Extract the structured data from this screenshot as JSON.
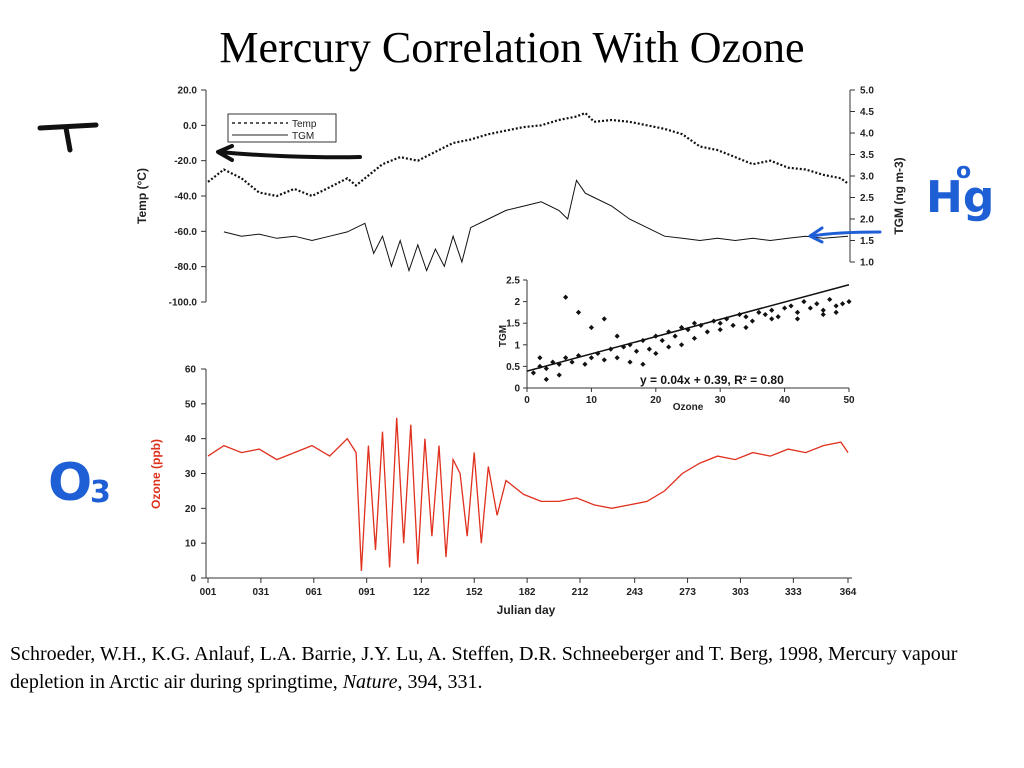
{
  "slide": {
    "title": "Mercury Correlation With Ozone",
    "citation": {
      "before": "Schroeder, W.H., K.G. Anlauf, L.A. Barrie, J.Y. Lu, A. Steffen, D.R. Schneeberger and T. Berg, 1998, Mercury vapour depletion in Arctic air during springtime, ",
      "journal": "Nature",
      "after": ", 394, 331."
    }
  },
  "annotations": {
    "temp_symbol": "T",
    "ozone_symbol": "O",
    "ozone_subscript": "3",
    "mercury_symbol": "Hg",
    "mercury_superscript": "o",
    "colors": {
      "ink_black": "#111111",
      "ink_blue": "#1f5fd6",
      "ozone_line": "#e0301e"
    }
  },
  "chart_data": [
    {
      "type": "line",
      "title": "",
      "xlabel": "",
      "ylabel": "Temp (°C)",
      "ylabel_right": "TGM (ng m-3)",
      "ylim": [
        -100,
        20
      ],
      "ylim_right": [
        1.0,
        5.0
      ],
      "yticks": [
        "20.0",
        "0.0",
        "-20.0",
        "-40.0",
        "-60.0",
        "-80.0",
        "-100.0"
      ],
      "yticks_right": [
        "5.0",
        "4.5",
        "4.0",
        "3.5",
        "3.0",
        "2.5",
        "2.0",
        "1.5",
        "1.0"
      ],
      "legend": [
        "Temp",
        "TGM"
      ],
      "legend_position": "top-left",
      "series": [
        {
          "name": "Temp",
          "axis": "left",
          "style": "dotted",
          "x": [
            1,
            10,
            20,
            30,
            40,
            50,
            60,
            70,
            80,
            85,
            90,
            100,
            110,
            120,
            130,
            140,
            150,
            160,
            170,
            180,
            190,
            200,
            210,
            215,
            220,
            230,
            240,
            250,
            260,
            270,
            280,
            290,
            300,
            310,
            320,
            330,
            340,
            350,
            360,
            364
          ],
          "y": [
            -32,
            -25,
            -30,
            -38,
            -40,
            -36,
            -40,
            -35,
            -30,
            -34,
            -30,
            -22,
            -18,
            -20,
            -15,
            -10,
            -8,
            -5,
            -3,
            -1,
            0,
            3,
            5,
            7,
            2,
            3,
            2,
            0,
            -2,
            -5,
            -12,
            -14,
            -18,
            -22,
            -20,
            -24,
            -25,
            -28,
            -30,
            -33
          ]
        },
        {
          "name": "TGM",
          "axis": "right",
          "style": "solid",
          "x": [
            10,
            20,
            30,
            40,
            50,
            60,
            70,
            80,
            90,
            95,
            100,
            105,
            110,
            115,
            120,
            125,
            130,
            135,
            140,
            145,
            150,
            160,
            170,
            180,
            190,
            200,
            205,
            210,
            215,
            220,
            230,
            240,
            250,
            260,
            270,
            280,
            290,
            300,
            310,
            320,
            330,
            340,
            350,
            364
          ],
          "y": [
            1.7,
            1.6,
            1.65,
            1.55,
            1.6,
            1.5,
            1.6,
            1.7,
            1.9,
            1.2,
            1.6,
            0.9,
            1.5,
            0.8,
            1.4,
            0.8,
            1.3,
            0.9,
            1.6,
            1.0,
            1.8,
            2.0,
            2.2,
            2.3,
            2.4,
            2.2,
            2.0,
            2.9,
            2.6,
            2.5,
            2.3,
            2.0,
            1.8,
            1.6,
            1.55,
            1.5,
            1.55,
            1.5,
            1.55,
            1.5,
            1.55,
            1.6,
            1.55,
            1.6
          ]
        }
      ]
    },
    {
      "type": "line",
      "title": "",
      "xlabel": "Julian day",
      "ylabel": "Ozone (ppb)",
      "ylim": [
        0,
        60
      ],
      "xticks": [
        "001",
        "031",
        "061",
        "091",
        "122",
        "152",
        "182",
        "212",
        "243",
        "273",
        "303",
        "333",
        "364"
      ],
      "yticks": [
        "0",
        "10",
        "20",
        "30",
        "40",
        "50",
        "60"
      ],
      "series": [
        {
          "name": "",
          "color": "#e0301e",
          "x": [
            1,
            10,
            20,
            30,
            40,
            50,
            60,
            70,
            80,
            85,
            88,
            92,
            96,
            100,
            104,
            108,
            112,
            116,
            120,
            124,
            128,
            132,
            136,
            140,
            144,
            148,
            152,
            156,
            160,
            165,
            170,
            180,
            190,
            200,
            210,
            220,
            230,
            240,
            250,
            260,
            270,
            280,
            290,
            300,
            310,
            320,
            330,
            340,
            350,
            360,
            364
          ],
          "y": [
            35,
            38,
            36,
            37,
            34,
            36,
            38,
            35,
            40,
            36,
            2,
            38,
            8,
            42,
            3,
            46,
            10,
            44,
            4,
            40,
            12,
            38,
            6,
            34,
            30,
            12,
            36,
            10,
            32,
            18,
            28,
            24,
            22,
            22,
            23,
            21,
            20,
            21,
            22,
            25,
            30,
            33,
            35,
            34,
            36,
            35,
            37,
            36,
            38,
            39,
            36
          ]
        }
      ]
    },
    {
      "type": "scatter",
      "title": "",
      "xlabel": "Ozone",
      "ylabel": "TGM",
      "xlim": [
        0,
        50
      ],
      "ylim": [
        0,
        2.5
      ],
      "xticks": [
        "0",
        "10",
        "20",
        "30",
        "40",
        "50"
      ],
      "yticks": [
        "0",
        "0.5",
        "1",
        "1.5",
        "2",
        "2.5"
      ],
      "fit": {
        "slope": 0.04,
        "intercept": 0.39,
        "label": "y = 0.04x + 0.39,  R² = 0.80"
      },
      "points": [
        [
          1,
          0.35
        ],
        [
          2,
          0.5
        ],
        [
          3,
          0.45
        ],
        [
          4,
          0.6
        ],
        [
          5,
          0.55
        ],
        [
          6,
          0.7
        ],
        [
          7,
          0.6
        ],
        [
          8,
          0.75
        ],
        [
          9,
          0.55
        ],
        [
          10,
          0.7
        ],
        [
          11,
          0.8
        ],
        [
          12,
          0.65
        ],
        [
          13,
          0.9
        ],
        [
          14,
          0.7
        ],
        [
          15,
          0.95
        ],
        [
          16,
          1.0
        ],
        [
          17,
          0.85
        ],
        [
          18,
          1.1
        ],
        [
          19,
          0.9
        ],
        [
          20,
          1.2
        ],
        [
          21,
          1.1
        ],
        [
          22,
          1.3
        ],
        [
          23,
          1.2
        ],
        [
          24,
          1.4
        ],
        [
          25,
          1.35
        ],
        [
          26,
          1.5
        ],
        [
          27,
          1.45
        ],
        [
          28,
          1.3
        ],
        [
          29,
          1.55
        ],
        [
          30,
          1.5
        ],
        [
          31,
          1.6
        ],
        [
          32,
          1.45
        ],
        [
          33,
          1.7
        ],
        [
          34,
          1.65
        ],
        [
          35,
          1.55
        ],
        [
          36,
          1.75
        ],
        [
          37,
          1.7
        ],
        [
          38,
          1.8
        ],
        [
          39,
          1.65
        ],
        [
          40,
          1.85
        ],
        [
          41,
          1.9
        ],
        [
          42,
          1.75
        ],
        [
          43,
          2.0
        ],
        [
          44,
          1.85
        ],
        [
          45,
          1.95
        ],
        [
          46,
          1.8
        ],
        [
          47,
          2.05
        ],
        [
          48,
          1.9
        ],
        [
          49,
          1.95
        ],
        [
          50,
          2.0
        ],
        [
          3,
          0.2
        ],
        [
          5,
          0.3
        ],
        [
          6,
          2.1
        ],
        [
          8,
          1.75
        ],
        [
          10,
          1.4
        ],
        [
          12,
          1.6
        ],
        [
          14,
          1.2
        ],
        [
          16,
          0.6
        ],
        [
          18,
          0.55
        ],
        [
          20,
          0.8
        ],
        [
          22,
          0.95
        ],
        [
          24,
          1.0
        ],
        [
          26,
          1.15
        ],
        [
          30,
          1.35
        ],
        [
          34,
          1.4
        ],
        [
          38,
          1.6
        ],
        [
          42,
          1.6
        ],
        [
          46,
          1.7
        ],
        [
          48,
          1.75
        ],
        [
          2,
          0.7
        ]
      ]
    }
  ]
}
